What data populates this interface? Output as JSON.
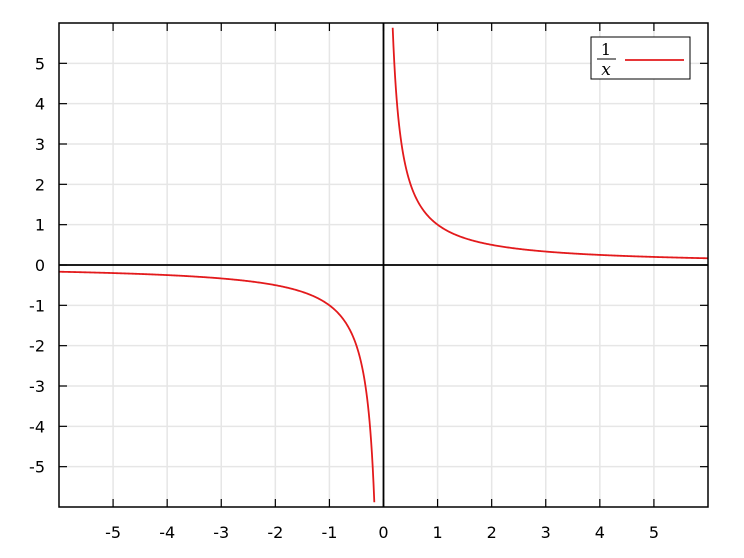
{
  "chart_data": {
    "type": "line",
    "title": "",
    "xlabel": "",
    "ylabel": "",
    "xlim": [
      -6,
      6
    ],
    "ylim": [
      -6,
      6
    ],
    "xticks": [
      -5,
      -4,
      -3,
      -2,
      -1,
      0,
      1,
      2,
      3,
      4,
      5
    ],
    "yticks": [
      -5,
      -4,
      -3,
      -2,
      -1,
      0,
      1,
      2,
      3,
      4,
      5
    ],
    "grid": true,
    "legend_position": "top-right",
    "legend": {
      "numerator": "1",
      "denominator": "x"
    },
    "series": [
      {
        "function": "1/x",
        "color": "#e31a1c",
        "segments": [
          {
            "x": [
              -6,
              -5,
              -4,
              -3,
              -2.5,
              -2,
              -1.5,
              -1.2,
              -1,
              -0.8,
              -0.6,
              -0.5,
              -0.4,
              -0.3,
              -0.25,
              -0.2,
              -0.17
            ],
            "y": [
              -0.167,
              -0.2,
              -0.25,
              -0.333,
              -0.4,
              -0.5,
              -0.667,
              -0.833,
              -1,
              -1.25,
              -1.667,
              -2,
              -2.5,
              -3.333,
              -4,
              -5,
              -5.882
            ]
          },
          {
            "x": [
              0.17,
              0.2,
              0.25,
              0.3,
              0.4,
              0.5,
              0.6,
              0.8,
              1,
              1.2,
              1.5,
              2,
              2.5,
              3,
              4,
              5,
              6
            ],
            "y": [
              5.882,
              5,
              4,
              3.333,
              2.5,
              2,
              1.667,
              1.25,
              1,
              0.833,
              0.667,
              0.5,
              0.4,
              0.333,
              0.25,
              0.2,
              0.167
            ]
          }
        ]
      }
    ],
    "colors": {
      "curve": "#e31a1c",
      "grid": "#e6e6e6",
      "axis": "#000000"
    }
  }
}
